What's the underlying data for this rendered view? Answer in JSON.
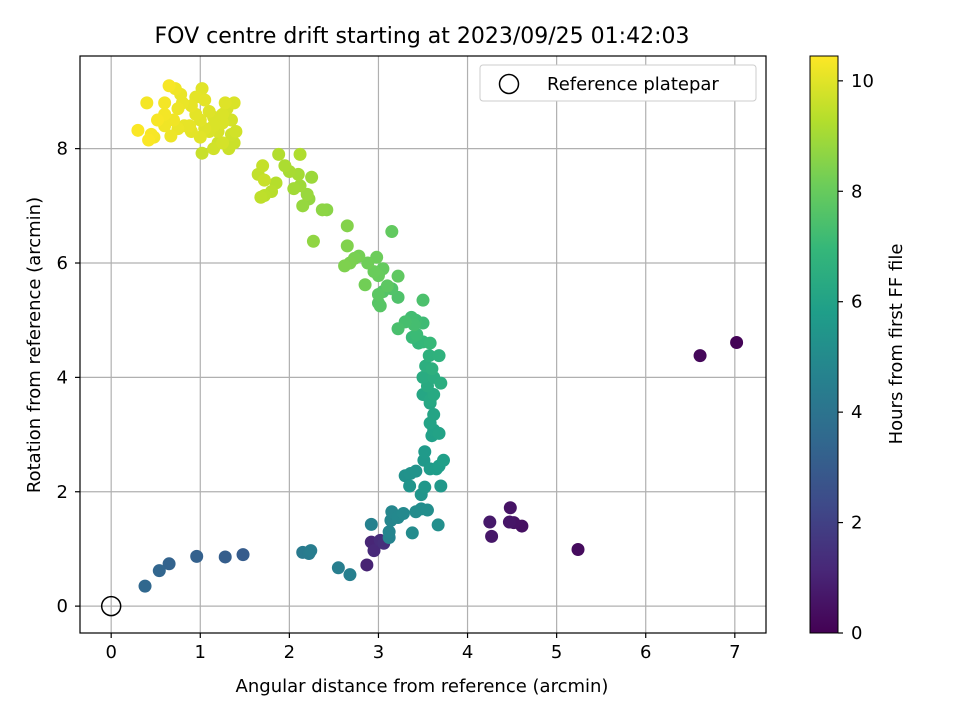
{
  "chart_data": {
    "type": "scatter",
    "title": "FOV centre drift starting at 2023/09/25 01:42:03",
    "xlabel": "Angular distance from reference (arcmin)",
    "ylabel": "Rotation from reference (arcmin)",
    "xlim": [
      -0.35,
      7.35
    ],
    "ylim": [
      -0.47,
      9.62
    ],
    "xticks": [
      0,
      1,
      2,
      3,
      4,
      5,
      6,
      7
    ],
    "yticks": [
      0,
      2,
      4,
      6,
      8
    ],
    "grid": true,
    "legend": {
      "position": "top-right",
      "entries": [
        "Reference platepar"
      ]
    },
    "reference_point": {
      "x": 0,
      "y": 0,
      "marker": "open-circle"
    },
    "colorbar": {
      "label": "Hours from first FF file",
      "range": [
        0,
        10.45
      ],
      "ticks": [
        0,
        2,
        4,
        6,
        8,
        10
      ],
      "colormap": "viridis"
    },
    "points": [
      [
        7.02,
        4.61,
        0.1
      ],
      [
        6.61,
        4.38,
        0.2
      ],
      [
        5.24,
        0.99,
        0.3
      ],
      [
        4.61,
        1.4,
        0.45
      ],
      [
        4.52,
        1.46,
        0.5
      ],
      [
        4.48,
        1.72,
        0.55
      ],
      [
        4.47,
        1.47,
        0.6
      ],
      [
        4.27,
        1.22,
        0.65
      ],
      [
        4.25,
        1.47,
        0.7
      ],
      [
        2.87,
        0.72,
        1.0
      ],
      [
        2.92,
        1.12,
        1.1
      ],
      [
        2.95,
        0.97,
        1.2
      ],
      [
        3.02,
        1.15,
        1.3
      ],
      [
        3.06,
        1.1,
        1.4
      ],
      [
        0.38,
        0.35,
        3.5
      ],
      [
        0.54,
        0.62,
        3.4
      ],
      [
        0.65,
        0.74,
        3.3
      ],
      [
        0.96,
        0.87,
        3.2
      ],
      [
        1.28,
        0.86,
        3.1
      ],
      [
        1.48,
        0.9,
        3.0
      ],
      [
        2.15,
        0.94,
        4.3
      ],
      [
        2.22,
        0.92,
        4.35
      ],
      [
        2.24,
        0.97,
        4.4
      ],
      [
        2.55,
        0.67,
        4.45
      ],
      [
        2.68,
        0.55,
        4.5
      ],
      [
        2.92,
        1.43,
        4.6
      ],
      [
        3.12,
        1.2,
        4.7
      ],
      [
        3.12,
        1.3,
        4.75
      ],
      [
        3.14,
        1.5,
        4.8
      ],
      [
        3.15,
        1.65,
        4.85
      ],
      [
        3.22,
        1.55,
        4.9
      ],
      [
        3.28,
        1.62,
        4.95
      ],
      [
        3.38,
        1.28,
        5.0
      ],
      [
        3.42,
        1.65,
        5.05
      ],
      [
        3.48,
        1.7,
        5.1
      ],
      [
        3.55,
        1.68,
        5.15
      ],
      [
        3.67,
        1.42,
        5.2
      ],
      [
        3.3,
        2.28,
        5.25
      ],
      [
        3.36,
        2.32,
        5.3
      ],
      [
        3.42,
        2.36,
        5.35
      ],
      [
        3.35,
        2.1,
        5.4
      ],
      [
        3.48,
        1.95,
        5.45
      ],
      [
        3.52,
        2.08,
        5.5
      ],
      [
        3.7,
        2.1,
        5.55
      ],
      [
        3.51,
        2.55,
        5.6
      ],
      [
        3.52,
        2.7,
        5.65
      ],
      [
        3.58,
        2.4,
        5.7
      ],
      [
        3.65,
        2.4,
        5.75
      ],
      [
        3.68,
        2.45,
        5.8
      ],
      [
        3.73,
        2.55,
        5.85
      ],
      [
        3.6,
        2.98,
        5.9
      ],
      [
        3.62,
        3.08,
        5.95
      ],
      [
        3.68,
        3.02,
        6.0
      ],
      [
        3.58,
        3.2,
        6.05
      ],
      [
        3.62,
        3.35,
        6.1
      ],
      [
        3.58,
        3.55,
        6.15
      ],
      [
        3.5,
        3.7,
        6.2
      ],
      [
        3.58,
        3.6,
        6.25
      ],
      [
        3.62,
        3.7,
        6.3
      ],
      [
        3.55,
        3.85,
        6.35
      ],
      [
        3.5,
        4.0,
        6.4
      ],
      [
        3.62,
        4.0,
        6.45
      ],
      [
        3.7,
        3.9,
        6.5
      ],
      [
        3.53,
        4.2,
        6.55
      ],
      [
        3.6,
        4.15,
        6.6
      ],
      [
        3.57,
        4.38,
        6.65
      ],
      [
        3.68,
        4.38,
        6.7
      ],
      [
        3.45,
        4.6,
        6.9
      ],
      [
        3.5,
        4.62,
        6.95
      ],
      [
        3.58,
        4.6,
        7.0
      ],
      [
        3.38,
        4.7,
        7.05
      ],
      [
        3.43,
        4.75,
        7.1
      ],
      [
        3.5,
        4.95,
        7.15
      ],
      [
        3.42,
        5.0,
        7.2
      ],
      [
        3.37,
        5.05,
        7.25
      ],
      [
        3.4,
        4.92,
        7.3
      ],
      [
        3.3,
        4.97,
        7.35
      ],
      [
        3.22,
        4.85,
        7.4
      ],
      [
        3.5,
        5.35,
        7.45
      ],
      [
        3.22,
        5.4,
        7.5
      ],
      [
        3.15,
        5.55,
        7.55
      ],
      [
        3.05,
        5.5,
        7.6
      ],
      [
        3.0,
        5.3,
        7.65
      ],
      [
        3.02,
        5.25,
        7.7
      ],
      [
        3.0,
        5.45,
        7.75
      ],
      [
        3.1,
        5.6,
        7.8
      ],
      [
        3.22,
        5.77,
        7.85
      ],
      [
        3.15,
        6.55,
        7.9
      ],
      [
        3.05,
        5.9,
        7.95
      ],
      [
        3.0,
        5.78,
        8.0
      ],
      [
        2.95,
        5.85,
        8.05
      ],
      [
        2.98,
        6.1,
        8.1
      ],
      [
        2.88,
        6.0,
        8.15
      ],
      [
        2.85,
        5.62,
        8.2
      ],
      [
        2.78,
        6.12,
        8.25
      ],
      [
        2.73,
        6.08,
        8.3
      ],
      [
        2.68,
        6.0,
        8.35
      ],
      [
        2.62,
        5.95,
        8.4
      ],
      [
        2.65,
        6.3,
        8.45
      ],
      [
        2.65,
        6.65,
        8.5
      ],
      [
        2.42,
        6.93,
        8.6
      ],
      [
        2.37,
        6.93,
        8.65
      ],
      [
        2.27,
        6.38,
        8.7
      ],
      [
        2.22,
        7.12,
        8.75
      ],
      [
        2.15,
        7.0,
        8.8
      ],
      [
        2.2,
        7.2,
        8.85
      ],
      [
        2.25,
        7.5,
        8.9
      ],
      [
        2.12,
        7.35,
        8.95
      ],
      [
        2.05,
        7.3,
        9.0
      ],
      [
        2.1,
        7.55,
        9.05
      ],
      [
        2.0,
        7.6,
        9.1
      ],
      [
        1.95,
        7.7,
        9.15
      ],
      [
        2.12,
        7.9,
        9.2
      ],
      [
        1.88,
        7.9,
        9.25
      ],
      [
        1.85,
        7.4,
        9.3
      ],
      [
        1.8,
        7.25,
        9.35
      ],
      [
        1.72,
        7.18,
        9.4
      ],
      [
        1.68,
        7.15,
        9.45
      ],
      [
        1.65,
        7.55,
        9.5
      ],
      [
        1.7,
        7.7,
        9.55
      ],
      [
        1.72,
        7.45,
        9.6
      ],
      [
        1.2,
        8.1,
        9.7
      ],
      [
        1.15,
        8.0,
        9.75
      ],
      [
        1.25,
        8.1,
        9.8
      ],
      [
        1.2,
        8.3,
        9.85
      ],
      [
        1.25,
        8.45,
        9.9
      ],
      [
        1.05,
        8.35,
        9.95
      ],
      [
        1.0,
        8.2,
        10.0
      ],
      [
        0.9,
        8.3,
        10.05
      ],
      [
        0.82,
        8.4,
        10.1
      ],
      [
        0.75,
        8.35,
        10.15
      ],
      [
        0.67,
        8.22,
        10.2
      ],
      [
        0.6,
        8.4,
        10.25
      ],
      [
        0.48,
        8.2,
        10.3
      ],
      [
        0.45,
        8.25,
        10.35
      ],
      [
        0.42,
        8.15,
        10.4
      ],
      [
        0.3,
        8.32,
        10.4
      ],
      [
        0.52,
        8.5,
        10.35
      ],
      [
        0.6,
        8.6,
        10.3
      ],
      [
        0.7,
        8.5,
        10.25
      ],
      [
        0.75,
        8.7,
        10.2
      ],
      [
        0.8,
        8.8,
        10.15
      ],
      [
        0.9,
        8.75,
        10.1
      ],
      [
        0.95,
        8.6,
        10.05
      ],
      [
        1.0,
        8.5,
        10.0
      ],
      [
        1.1,
        8.65,
        9.95
      ],
      [
        1.15,
        8.55,
        9.9
      ],
      [
        1.3,
        8.7,
        9.85
      ],
      [
        1.35,
        8.5,
        9.8
      ],
      [
        1.4,
        8.3,
        9.75
      ],
      [
        1.35,
        8.25,
        9.7
      ],
      [
        1.38,
        8.1,
        9.65
      ],
      [
        1.02,
        7.92,
        9.6
      ],
      [
        1.32,
        8.0,
        9.65
      ],
      [
        1.25,
        8.6,
        9.9
      ],
      [
        1.28,
        8.8,
        9.95
      ],
      [
        0.95,
        8.9,
        10.05
      ],
      [
        0.78,
        8.95,
        10.15
      ],
      [
        0.72,
        9.05,
        10.25
      ],
      [
        0.65,
        9.1,
        10.35
      ],
      [
        1.02,
        9.05,
        10.0
      ],
      [
        1.05,
        8.85,
        10.05
      ],
      [
        0.88,
        8.4,
        10.1
      ],
      [
        0.4,
        8.8,
        10.3
      ],
      [
        1.38,
        8.8,
        9.9
      ],
      [
        0.6,
        8.8,
        10.3
      ],
      [
        1.1,
        8.3,
        9.9
      ],
      [
        1.15,
        8.4,
        9.9
      ]
    ]
  }
}
